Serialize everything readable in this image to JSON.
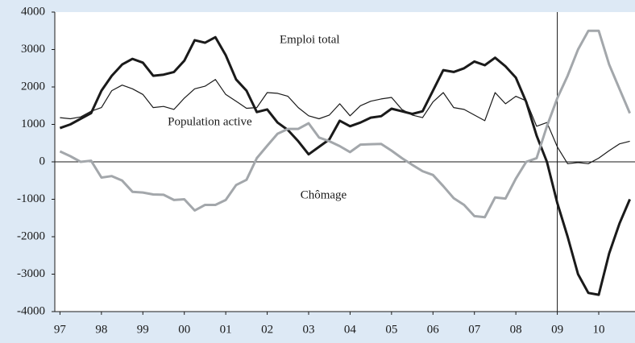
{
  "chart_data": {
    "type": "line",
    "x": [
      1997,
      1997.25,
      1997.5,
      1997.75,
      1998,
      1998.25,
      1998.5,
      1998.75,
      1999,
      1999.25,
      1999.5,
      1999.75,
      2000,
      2000.25,
      2000.5,
      2000.75,
      2001,
      2001.25,
      2001.5,
      2001.75,
      2002,
      2002.25,
      2002.5,
      2002.75,
      2003,
      2003.25,
      2003.5,
      2003.75,
      2004,
      2004.25,
      2004.5,
      2004.75,
      2005,
      2005.25,
      2005.5,
      2005.75,
      2006,
      2006.25,
      2006.5,
      2006.75,
      2007,
      2007.25,
      2007.5,
      2007.75,
      2008,
      2008.25,
      2008.5,
      2008.75,
      2009,
      2009.25,
      2009.5,
      2009.75,
      2010,
      2010.25,
      2010.5,
      2010.75
    ],
    "series": [
      {
        "name": "Emploi total",
        "color": "#1a1a1a",
        "width": 3,
        "values": [
          900,
          1000,
          1150,
          1300,
          1900,
          2300,
          2600,
          2750,
          2650,
          2300,
          2330,
          2400,
          2700,
          3250,
          3180,
          3330,
          2850,
          2200,
          1900,
          1330,
          1400,
          1050,
          850,
          550,
          200,
          400,
          600,
          1100,
          950,
          1050,
          1180,
          1220,
          1420,
          1350,
          1280,
          1350,
          1900,
          2450,
          2400,
          2500,
          2680,
          2580,
          2780,
          2550,
          2250,
          1600,
          700,
          0,
          -1100,
          -2000,
          -3000,
          -3500,
          -3550,
          -2450,
          -1650,
          -1000
        ]
      },
      {
        "name": "Population active",
        "color": "#1a1a1a",
        "width": 1.2,
        "values": [
          1180,
          1150,
          1200,
          1350,
          1450,
          1900,
          2050,
          1950,
          1800,
          1450,
          1480,
          1400,
          1700,
          1950,
          2020,
          2200,
          1800,
          1620,
          1430,
          1450,
          1850,
          1830,
          1750,
          1450,
          1230,
          1150,
          1250,
          1550,
          1230,
          1500,
          1620,
          1680,
          1720,
          1400,
          1250,
          1180,
          1600,
          1850,
          1450,
          1400,
          1250,
          1100,
          1850,
          1550,
          1750,
          1630,
          950,
          1050,
          400,
          -50,
          -20,
          -50,
          100,
          300,
          480,
          550
        ]
      },
      {
        "name": "Chômage",
        "color": "#a3a7ab",
        "width": 3,
        "values": [
          280,
          150,
          0,
          30,
          -420,
          -380,
          -500,
          -800,
          -820,
          -870,
          -880,
          -1020,
          -1000,
          -1300,
          -1150,
          -1150,
          -1020,
          -620,
          -480,
          100,
          430,
          750,
          880,
          880,
          1030,
          650,
          550,
          420,
          260,
          460,
          470,
          480,
          300,
          100,
          -80,
          -250,
          -350,
          -650,
          -970,
          -1150,
          -1450,
          -1480,
          -950,
          -980,
          -450,
          0,
          100,
          950,
          1700,
          2300,
          3000,
          3500,
          3500,
          2600,
          1950,
          1300
        ]
      }
    ],
    "xlim": [
      1996.875,
      2010.875
    ],
    "xticks": [
      {
        "value": 1997,
        "label": "97"
      },
      {
        "value": 1998,
        "label": "98"
      },
      {
        "value": 1999,
        "label": "99"
      },
      {
        "value": 2000,
        "label": "00"
      },
      {
        "value": 2001,
        "label": "01"
      },
      {
        "value": 2002,
        "label": "02"
      },
      {
        "value": 2003,
        "label": "03"
      },
      {
        "value": 2004,
        "label": "04"
      },
      {
        "value": 2005,
        "label": "05"
      },
      {
        "value": 2006,
        "label": "06"
      },
      {
        "value": 2007,
        "label": "07"
      },
      {
        "value": 2008,
        "label": "08"
      },
      {
        "value": 2009,
        "label": "09"
      },
      {
        "value": 2010,
        "label": "10"
      }
    ],
    "ylim": [
      -4000,
      4000
    ],
    "yticks": [
      -4000,
      -3000,
      -2000,
      -1000,
      0,
      1000,
      2000,
      3000,
      4000
    ],
    "hline": 0,
    "vline": 2009,
    "annotations": [
      {
        "text": "Emploi total",
        "x": 2002.3,
        "y": 3250
      },
      {
        "text": "Population active",
        "x": 1999.6,
        "y": 1050
      },
      {
        "text": "Chômage",
        "x": 2002.8,
        "y": -900
      }
    ]
  }
}
